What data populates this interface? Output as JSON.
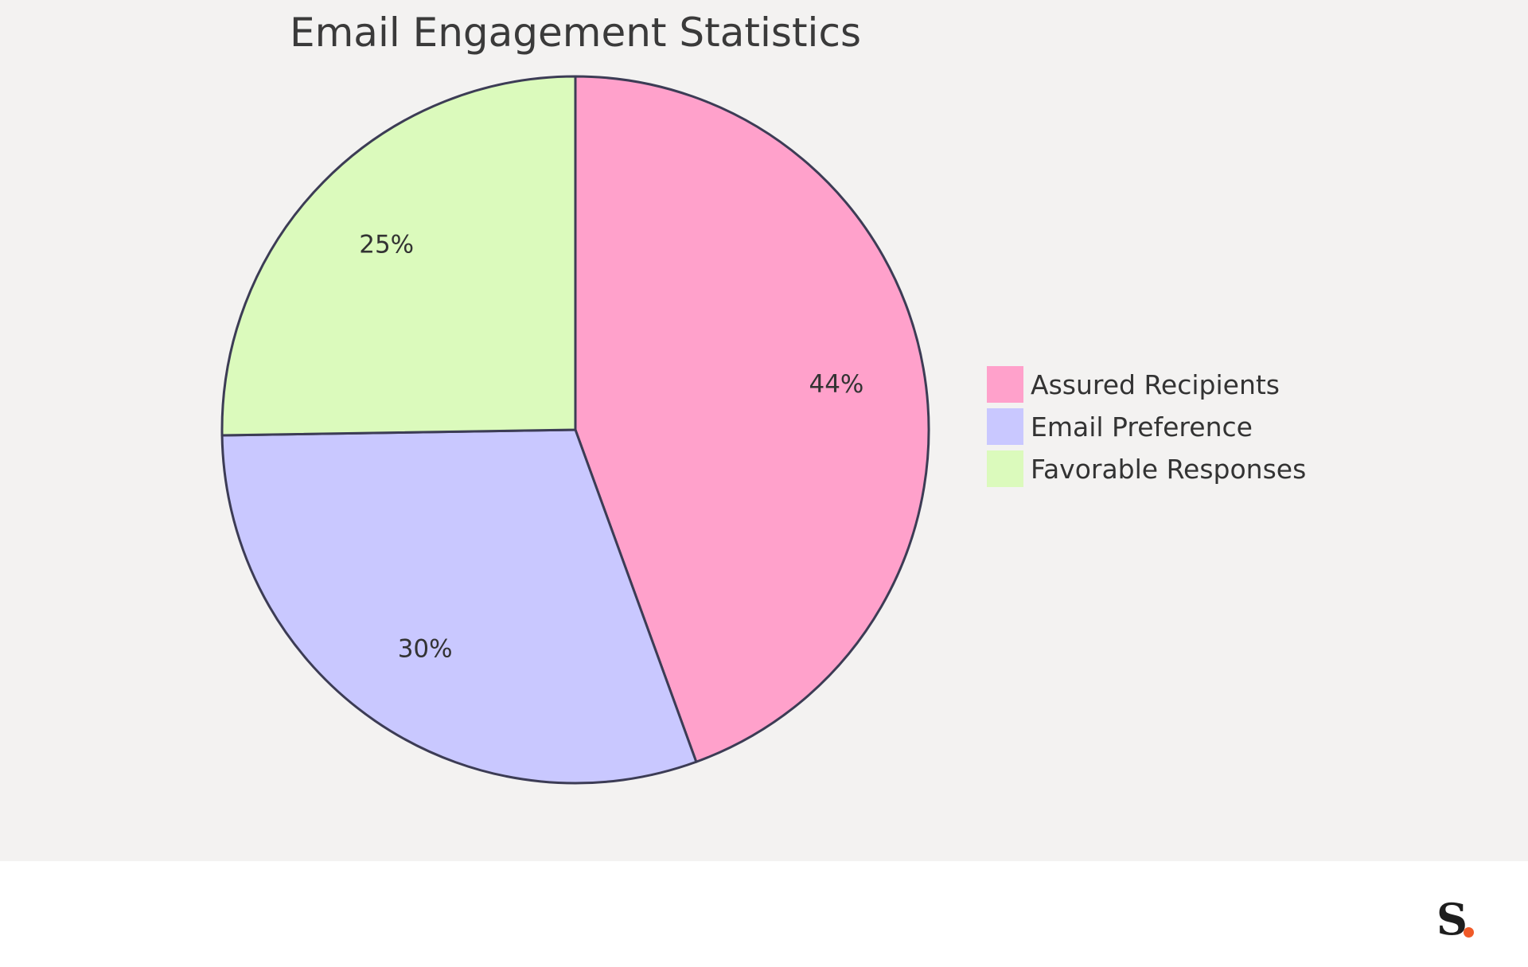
{
  "chart_data": {
    "type": "pie",
    "title": "Email Engagement Statistics",
    "categories": [
      "Assured Recipients",
      "Email Preference",
      "Favorable Responses"
    ],
    "values": [
      44,
      30,
      25
    ],
    "value_labels": [
      "44%",
      "30%",
      "25%"
    ],
    "colors": [
      "#ffa1cb",
      "#c9c8ff",
      "#dbfabc"
    ],
    "outline_color": "#3c3c55",
    "legend_position": "right",
    "start_angle": "12 o'clock",
    "direction": "clockwise"
  },
  "logo": {
    "text": "S",
    "dot_color": "#f05a28"
  }
}
